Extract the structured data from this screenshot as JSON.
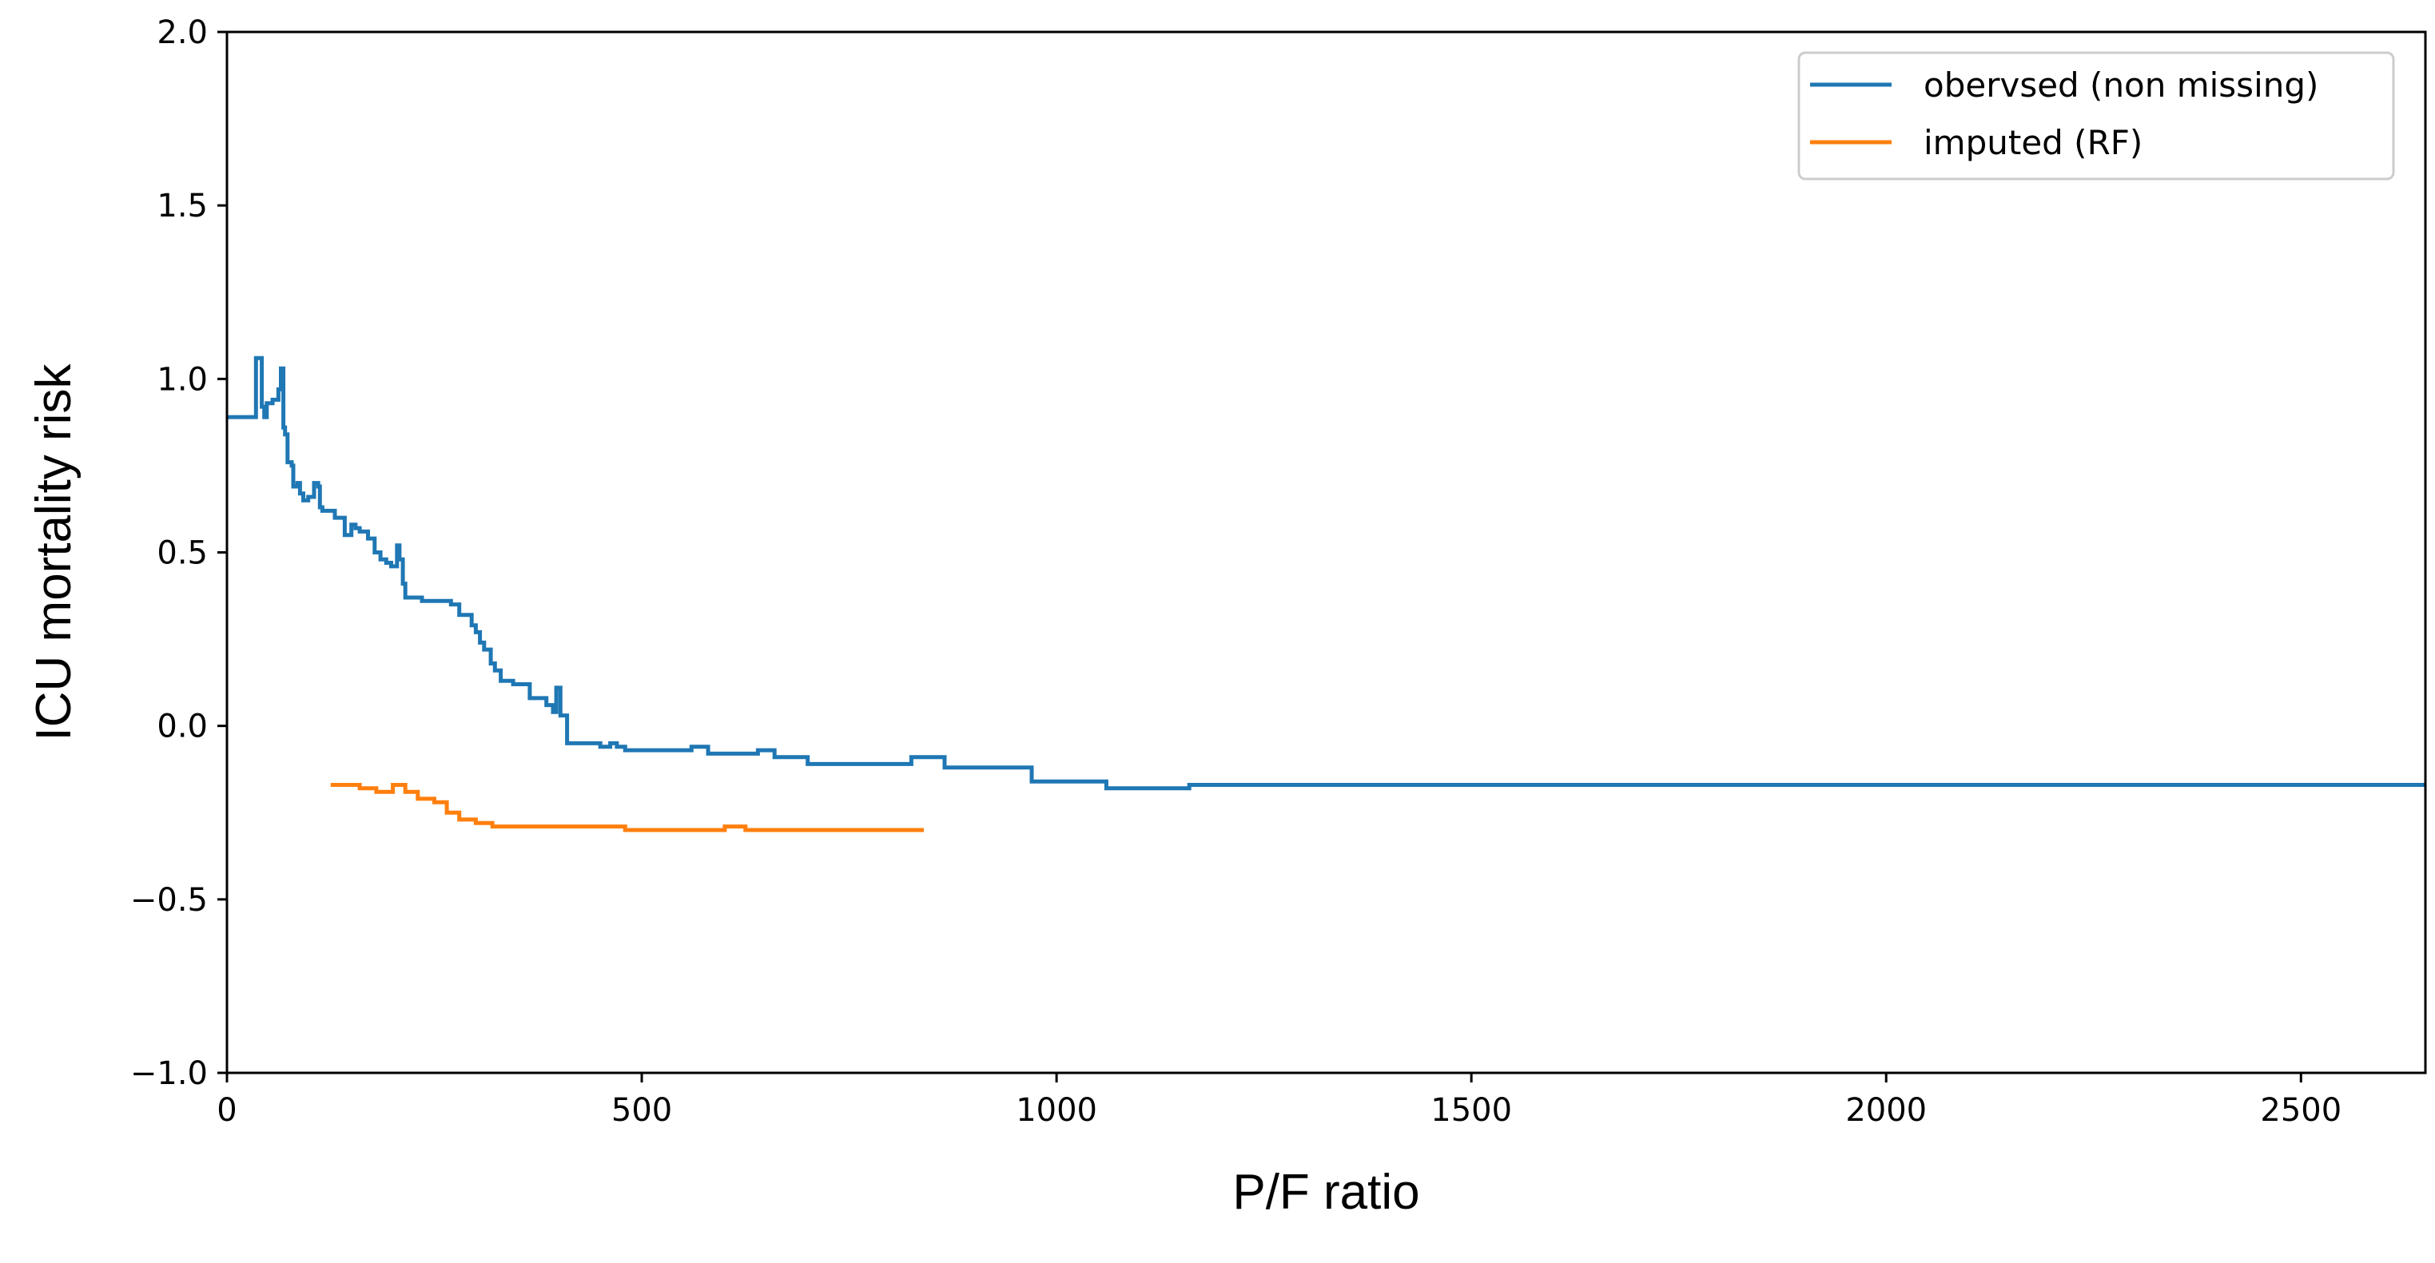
{
  "chart_data": {
    "type": "line",
    "title": "",
    "xlabel": "P/F ratio",
    "ylabel": "ICU mortality risk",
    "xlim": [
      0,
      2650
    ],
    "ylim": [
      -1.0,
      2.0
    ],
    "x_ticks": [
      0,
      500,
      1000,
      1500,
      2000,
      2500
    ],
    "x_tick_labels": [
      "0",
      "500",
      "1000",
      "1500",
      "2000",
      "2500"
    ],
    "y_ticks": [
      -1.0,
      -0.5,
      0.0,
      0.5,
      1.0,
      1.5,
      2.0
    ],
    "y_tick_labels": [
      "−1.0",
      "−0.5",
      "0.0",
      "0.5",
      "1.0",
      "1.5",
      "2.0"
    ],
    "grid": false,
    "legend_position": "top-right",
    "step": true,
    "series": [
      {
        "name": "obervsed (non missing)",
        "color": "#1f77b4",
        "x": [
          0,
          35,
          42,
          45,
          48,
          52,
          55,
          62,
          65,
          68,
          70,
          73,
          78,
          80,
          85,
          88,
          92,
          98,
          105,
          110,
          112,
          115,
          122,
          130,
          135,
          142,
          150,
          155,
          160,
          165,
          170,
          178,
          185,
          192,
          198,
          205,
          208,
          212,
          215,
          220,
          235,
          250,
          270,
          280,
          290,
          295,
          300,
          305,
          310,
          318,
          323,
          330,
          345,
          365,
          385,
          393,
          397,
          402,
          410,
          430,
          450,
          462,
          470,
          480,
          490,
          505,
          520,
          540,
          560,
          570,
          580,
          600,
          640,
          660,
          700,
          720,
          790,
          825,
          865,
          900,
          970,
          1060,
          1160,
          1310,
          2650
        ],
        "y": [
          0.89,
          1.06,
          0.92,
          0.89,
          0.93,
          0.93,
          0.94,
          0.97,
          1.03,
          0.86,
          0.84,
          0.76,
          0.75,
          0.69,
          0.7,
          0.67,
          0.65,
          0.66,
          0.7,
          0.69,
          0.63,
          0.62,
          0.62,
          0.6,
          0.6,
          0.55,
          0.58,
          0.57,
          0.56,
          0.56,
          0.54,
          0.5,
          0.48,
          0.47,
          0.46,
          0.52,
          0.48,
          0.41,
          0.37,
          0.37,
          0.36,
          0.36,
          0.35,
          0.32,
          0.32,
          0.29,
          0.27,
          0.24,
          0.22,
          0.18,
          0.16,
          0.13,
          0.12,
          0.08,
          0.06,
          0.04,
          0.11,
          0.03,
          -0.05,
          -0.05,
          -0.06,
          -0.05,
          -0.06,
          -0.07,
          -0.07,
          -0.07,
          -0.07,
          -0.07,
          -0.06,
          -0.06,
          -0.08,
          -0.08,
          -0.07,
          -0.09,
          -0.11,
          -0.11,
          -0.11,
          -0.09,
          -0.12,
          -0.12,
          -0.16,
          -0.18,
          -0.17,
          -0.17,
          -0.17
        ]
      },
      {
        "name": "imputed (RF)",
        "color": "#ff7f0e",
        "x": [
          125,
          140,
          160,
          180,
          200,
          215,
          230,
          250,
          265,
          280,
          300,
          320,
          350,
          400,
          450,
          480,
          500,
          550,
          600,
          625,
          650,
          700,
          750,
          800,
          840
        ],
        "y": [
          -0.17,
          -0.17,
          -0.18,
          -0.19,
          -0.17,
          -0.19,
          -0.21,
          -0.22,
          -0.25,
          -0.27,
          -0.28,
          -0.29,
          -0.29,
          -0.29,
          -0.29,
          -0.3,
          -0.3,
          -0.3,
          -0.29,
          -0.3,
          -0.3,
          -0.3,
          -0.3,
          -0.3,
          -0.3
        ]
      }
    ]
  }
}
